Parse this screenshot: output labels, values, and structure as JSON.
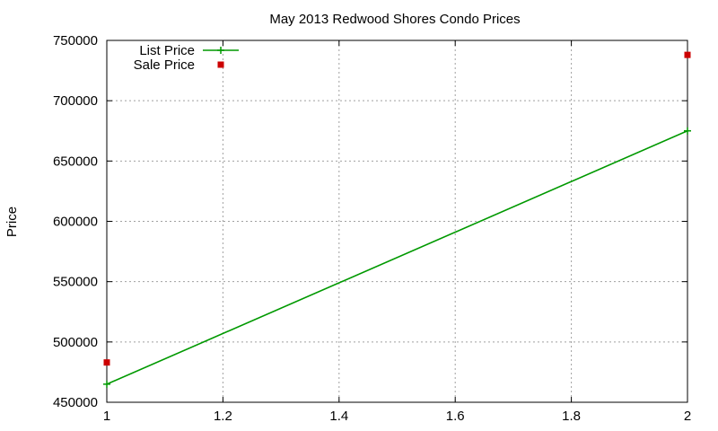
{
  "chart_data": {
    "type": "line",
    "title": "May 2013 Redwood Shores Condo Prices",
    "xlabel": "",
    "ylabel": "Price",
    "xlim": [
      1,
      2
    ],
    "ylim": [
      450000,
      750000
    ],
    "x_ticks": [
      1,
      1.2,
      1.4,
      1.6,
      1.8,
      2
    ],
    "x_tick_labels": [
      "1",
      "1.2",
      "1.4",
      "1.6",
      "1.8",
      "2"
    ],
    "y_ticks": [
      450000,
      500000,
      550000,
      600000,
      650000,
      700000,
      750000
    ],
    "y_tick_labels": [
      "450000",
      "500000",
      "550000",
      "600000",
      "650000",
      "700000",
      "750000"
    ],
    "grid": true,
    "legend_position": "top-left",
    "series": [
      {
        "name": "List Price",
        "style": "linespoints",
        "marker": "plus",
        "color": "#009900",
        "points": [
          {
            "x": 1,
            "y": 465000
          },
          {
            "x": 2,
            "y": 675000
          }
        ]
      },
      {
        "name": "Sale Price",
        "style": "points",
        "marker": "square",
        "color": "#cc0000",
        "points": [
          {
            "x": 1,
            "y": 483000
          },
          {
            "x": 2,
            "y": 738000
          }
        ]
      }
    ]
  }
}
